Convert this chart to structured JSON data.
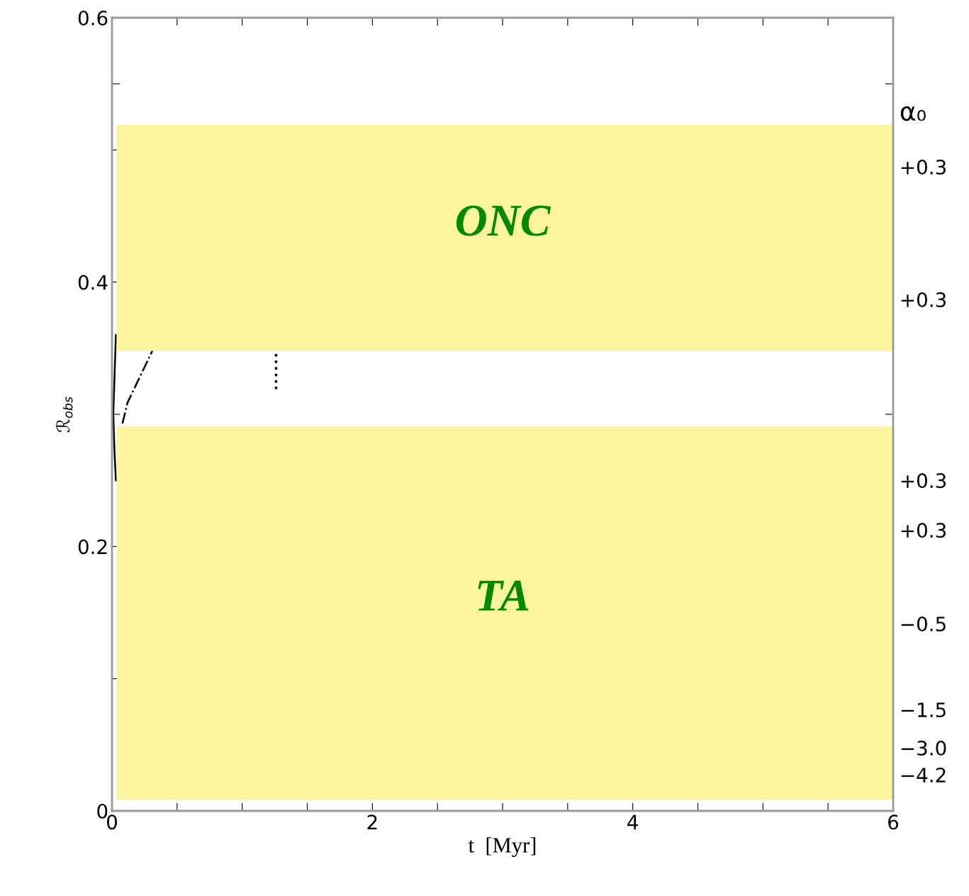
{
  "chart_data": {
    "type": "line",
    "xlabel": "t  [Myr]",
    "ylabel": "ℛ$_{obs}$",
    "xlim": [
      0,
      6
    ],
    "xticks": [
      0,
      {
        "value": 0.5,
        "label": null
      },
      {
        "value": 1,
        "label": null
      },
      {
        "value": 1.5,
        "label": null
      },
      2,
      {
        "value": 2.5,
        "label": null
      },
      {
        "value": 3,
        "label": null
      },
      {
        "value": 3.5,
        "label": null
      },
      4,
      {
        "value": 4.5,
        "label": null
      },
      {
        "value": 5,
        "label": null
      },
      {
        "value": 5.5,
        "label": null
      },
      6
    ],
    "ylim": [
      0,
      0.6
    ],
    "yticks": [
      0,
      {
        "value": 0.1,
        "label": null
      },
      0.2,
      {
        "value": 0.3,
        "label": null
      },
      0.4,
      {
        "value": 0.5,
        "label": null
      },
      {
        "value": 0.55,
        "label": null
      },
      0.6
    ],
    "annotations": [
      "α₀",
      "+0.3",
      "+0.3",
      "+0.3",
      "+0.3",
      "−0.5",
      "−1.5",
      "−3.0",
      "−4.2"
    ],
    "series": [
      {
        "color": "#000000",
        "line_style": "solid",
        "x": [
          0.03,
          0.02,
          0.01,
          0.02,
          0.03
        ],
        "values": [
          0.36,
          0.33,
          0.3,
          0.27,
          0.25
        ]
      },
      {
        "color": "#000000",
        "line_style": "dashdot",
        "x": [
          0.08,
          0.12,
          0.31
        ],
        "values": [
          0.293,
          0.309,
          0.348
        ]
      },
      {
        "color": "#000000",
        "line_style": "dotted",
        "x": [
          1.26,
          1.26
        ],
        "values": [
          0.319,
          0.348
        ]
      }
    ],
    "bands": [
      {
        "axis": "y",
        "from": 0.348,
        "to": 0.519,
        "label": "ONC",
        "color": "#fbf5a0"
      },
      {
        "axis": "y",
        "from": 0.0086,
        "to": 0.291,
        "label": "TA",
        "color": "#fbf5a0"
      }
    ],
    "grid": false
  }
}
